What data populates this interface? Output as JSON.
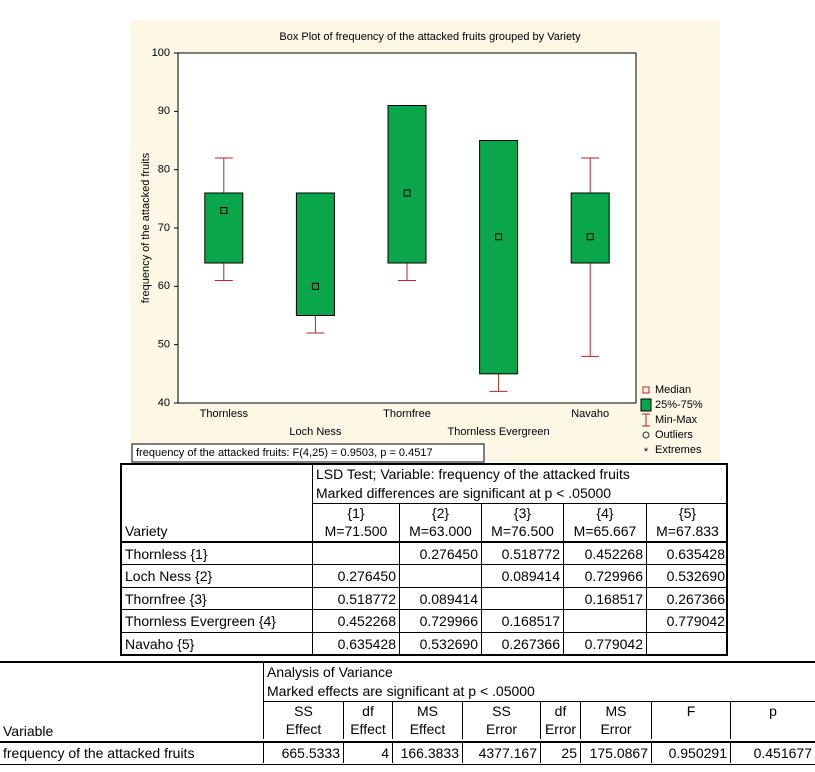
{
  "chart_data": {
    "type": "box",
    "title": "Box Plot of frequency of the attacked fruits grouped by  Variety",
    "y_label": "frequency of the attacked fruits",
    "categories": [
      "Thornless",
      "Loch Ness",
      "Thornfree",
      "Thornless Evergreen",
      "Navaho"
    ],
    "min": [
      61,
      52,
      61,
      42,
      48
    ],
    "q1": [
      64,
      55,
      64,
      45,
      64
    ],
    "median": [
      73,
      60,
      76,
      68.5,
      68.5
    ],
    "q3": [
      76,
      76,
      91,
      85,
      76
    ],
    "max": [
      82,
      76,
      91,
      85,
      82
    ],
    "box_color": "#0aa64a",
    "whisker_color": "#b5262b",
    "ylim": [
      40,
      100
    ],
    "yticks": [
      40,
      50,
      60,
      70,
      80,
      90,
      100
    ],
    "grid": false,
    "legend": [
      "Median",
      "25%-75%",
      "Min-Max",
      "Outliers",
      "Extremes"
    ],
    "legend_position": "right",
    "annotation": "frequency of the attacked fruits:  F(4,25) = 0.9503, p = 0.4517"
  },
  "lsd_table": {
    "title": [
      "LSD Test; Variable: frequency of the attacked fruits",
      "Marked differences are significant at p < .05000"
    ],
    "row_header": "Variety",
    "columns": [
      {
        "id": "{1}",
        "mean": "M=71.500"
      },
      {
        "id": "{2}",
        "mean": "M=63.000"
      },
      {
        "id": "{3}",
        "mean": "M=76.500"
      },
      {
        "id": "{4}",
        "mean": "M=65.667"
      },
      {
        "id": "{5}",
        "mean": "M=67.833"
      }
    ],
    "rows": [
      {
        "label": "Thornless {1}",
        "values": [
          null,
          "0.276450",
          "0.518772",
          "0.452268",
          "0.635428"
        ]
      },
      {
        "label": "Loch Ness {2}",
        "values": [
          "0.276450",
          null,
          "0.089414",
          "0.729966",
          "0.532690"
        ]
      },
      {
        "label": "Thornfree {3}",
        "values": [
          "0.518772",
          "0.089414",
          null,
          "0.168517",
          "0.267366"
        ]
      },
      {
        "label": "Thornless Evergreen {4}",
        "values": [
          "0.452268",
          "0.729966",
          "0.168517",
          null,
          "0.779042"
        ]
      },
      {
        "label": "Navaho   {5}",
        "values": [
          "0.635428",
          "0.532690",
          "0.267366",
          "0.779042",
          null
        ]
      }
    ]
  },
  "anova_table": {
    "title": [
      "Analysis of Variance",
      "Marked effects are significant at p < .05000"
    ],
    "row_header": "Variable",
    "columns": [
      [
        "SS",
        "Effect"
      ],
      [
        "df",
        "Effect"
      ],
      [
        "MS",
        "Effect"
      ],
      [
        "SS",
        "Error"
      ],
      [
        "df",
        "Error"
      ],
      [
        "MS",
        "Error"
      ],
      [
        "F"
      ],
      [
        "p"
      ]
    ],
    "rows": [
      {
        "label": "frequency of the attacked fruits",
        "values": [
          "665.5333",
          "4",
          "166.3833",
          "4377.167",
          "25",
          "175.0867",
          "0.950291",
          "0.451677"
        ]
      }
    ]
  }
}
